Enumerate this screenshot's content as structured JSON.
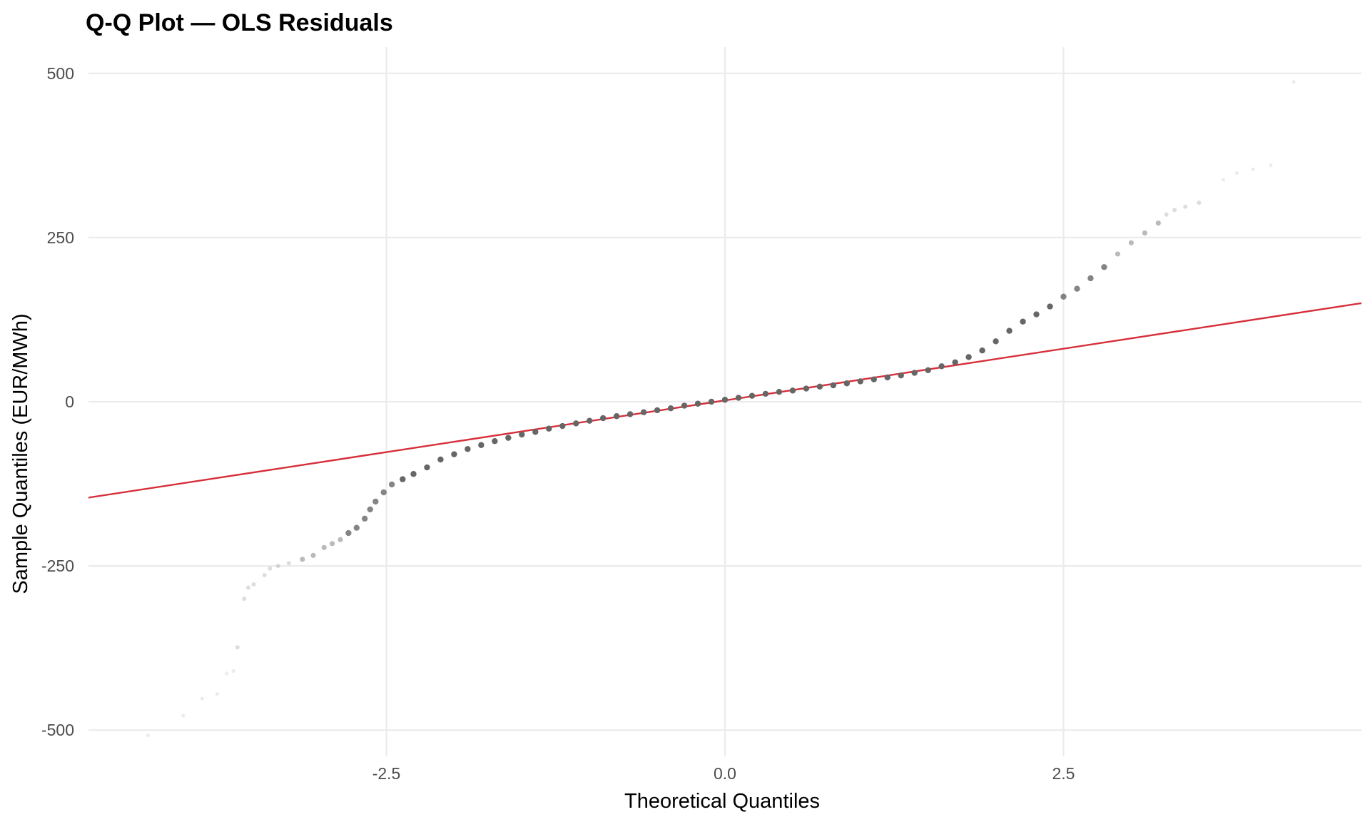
{
  "chart_data": {
    "type": "scatter",
    "title": "Q-Q Plot — OLS Residuals",
    "xlabel": "Theoretical Quantiles",
    "ylabel": "Sample Quantiles (EUR/MWh)",
    "xlim": [
      -4.7,
      4.7
    ],
    "ylim": [
      -540,
      540
    ],
    "xticks": [
      -2.5,
      0.0,
      2.5
    ],
    "xtick_labels": [
      "-2.5",
      "0.0",
      "2.5"
    ],
    "yticks": [
      -500,
      -250,
      0,
      250,
      500
    ],
    "ytick_labels": [
      "-500",
      "-250",
      "0",
      "250",
      "500"
    ],
    "grid": true,
    "legend": "none",
    "point_color": "#666666",
    "reference_line": {
      "slope": 31.5,
      "intercept": 2,
      "color": "#d62f3a"
    },
    "series": [
      {
        "points": [
          [
            -4.26,
            -508
          ],
          [
            -4.0,
            -478
          ],
          [
            -3.86,
            -452
          ],
          [
            -3.75,
            -445
          ],
          [
            -3.68,
            -414
          ],
          [
            -3.63,
            -410
          ],
          [
            -3.6,
            -374
          ],
          [
            -3.55,
            -300
          ],
          [
            -3.52,
            -283
          ],
          [
            -3.48,
            -278
          ],
          [
            -3.4,
            -264
          ],
          [
            -3.36,
            -254
          ],
          [
            -3.3,
            -250
          ],
          [
            -3.22,
            -246
          ],
          [
            -3.12,
            -240
          ],
          [
            -3.04,
            -234
          ],
          [
            -2.96,
            -222
          ],
          [
            -2.9,
            -216
          ],
          [
            -2.84,
            -210
          ],
          [
            -2.78,
            -200
          ],
          [
            -2.72,
            -192
          ],
          [
            -2.66,
            -178
          ],
          [
            -2.62,
            -164
          ],
          [
            -2.58,
            -152
          ],
          [
            -2.52,
            -138
          ],
          [
            -2.46,
            -126
          ],
          [
            -2.38,
            -118
          ],
          [
            -2.3,
            -110
          ],
          [
            -2.2,
            -100
          ],
          [
            -2.1,
            -88
          ],
          [
            -2.0,
            -80
          ],
          [
            -1.9,
            -72
          ],
          [
            -1.8,
            -66
          ],
          [
            -1.7,
            -60
          ],
          [
            -1.6,
            -55
          ],
          [
            -1.5,
            -50
          ],
          [
            -1.4,
            -46
          ],
          [
            -1.3,
            -41
          ],
          [
            -1.2,
            -37
          ],
          [
            -1.1,
            -33
          ],
          [
            -1.0,
            -29
          ],
          [
            -0.9,
            -25
          ],
          [
            -0.8,
            -22
          ],
          [
            -0.7,
            -19
          ],
          [
            -0.6,
            -16
          ],
          [
            -0.5,
            -13
          ],
          [
            -0.4,
            -10
          ],
          [
            -0.3,
            -6
          ],
          [
            -0.2,
            -3
          ],
          [
            -0.1,
            0
          ],
          [
            0.0,
            3
          ],
          [
            0.1,
            6
          ],
          [
            0.2,
            9
          ],
          [
            0.3,
            12
          ],
          [
            0.4,
            15
          ],
          [
            0.5,
            17
          ],
          [
            0.6,
            20
          ],
          [
            0.7,
            23
          ],
          [
            0.8,
            25
          ],
          [
            0.9,
            28
          ],
          [
            1.0,
            31
          ],
          [
            1.1,
            34
          ],
          [
            1.2,
            37
          ],
          [
            1.3,
            40
          ],
          [
            1.4,
            44
          ],
          [
            1.5,
            48
          ],
          [
            1.6,
            54
          ],
          [
            1.7,
            60
          ],
          [
            1.8,
            68
          ],
          [
            1.9,
            78
          ],
          [
            2.0,
            92
          ],
          [
            2.1,
            108
          ],
          [
            2.2,
            122
          ],
          [
            2.3,
            133
          ],
          [
            2.4,
            145
          ],
          [
            2.5,
            160
          ],
          [
            2.6,
            172
          ],
          [
            2.7,
            188
          ],
          [
            2.8,
            205
          ],
          [
            2.9,
            225
          ],
          [
            3.0,
            242
          ],
          [
            3.1,
            257
          ],
          [
            3.2,
            272
          ],
          [
            3.26,
            285
          ],
          [
            3.32,
            292
          ],
          [
            3.4,
            297
          ],
          [
            3.5,
            303
          ],
          [
            3.68,
            338
          ],
          [
            3.78,
            348
          ],
          [
            3.9,
            354
          ],
          [
            4.03,
            360
          ],
          [
            4.2,
            487
          ]
        ]
      }
    ]
  }
}
